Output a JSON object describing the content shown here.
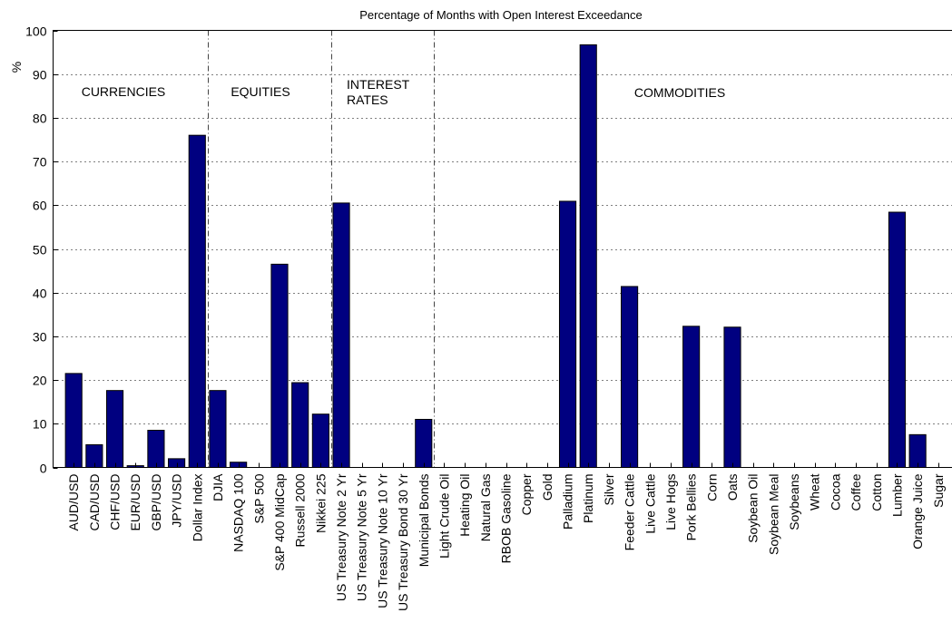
{
  "chart_data": {
    "type": "bar",
    "title": "Percentage of Months with Open Interest Exceedance",
    "xlabel": "",
    "ylabel": "%",
    "ylim": [
      0,
      100
    ],
    "yticks": [
      0,
      10,
      20,
      30,
      40,
      50,
      60,
      70,
      80,
      90,
      100
    ],
    "grid": true,
    "bar_color": "#000080",
    "categories": [
      "AUD/USD",
      "CAD/USD",
      "CHF/USD",
      "EUR/USD",
      "GBP/USD",
      "JPY/USD",
      "Dollar Index",
      "DJIA",
      "NASDAQ 100",
      "S&P 500",
      "S&P 400 MidCap",
      "Russell 2000",
      "Nikkei 225",
      "US Treasury Note 2 Yr",
      "US Treasury Note 5 Yr",
      "US Treasury Note 10 Yr",
      "US Treasury Bond 30 Yr",
      "Municipal Bonds",
      "Light Crude Oil",
      "Heating Oil",
      "Natural Gas",
      "RBOB Gasoline",
      "Copper",
      "Gold",
      "Palladium",
      "Platinum",
      "Silver",
      "Feeder Cattle",
      "Live Cattle",
      "Live Hogs",
      "Pork Bellies",
      "Corn",
      "Oats",
      "Soybean Oil",
      "Soybean Meal",
      "Soybeans",
      "Wheat",
      "Cocoa",
      "Coffee",
      "Cotton",
      "Lumber",
      "Orange Juice",
      "Sugar"
    ],
    "values": [
      21.5,
      5.2,
      17.6,
      0.4,
      8.5,
      2.0,
      76.0,
      17.6,
      1.2,
      0,
      46.5,
      19.4,
      12.2,
      60.5,
      0,
      0,
      0,
      11.0,
      0,
      0,
      0,
      0,
      0,
      0,
      60.9,
      96.7,
      0,
      41.4,
      0,
      0,
      32.3,
      0,
      32.1,
      0,
      0,
      0,
      0,
      0,
      0,
      0,
      58.4,
      7.5,
      0
    ],
    "sector_labels": [
      {
        "lines": [
          "CURRENCIES"
        ]
      },
      {
        "lines": [
          "EQUITIES"
        ]
      },
      {
        "lines": [
          "INTEREST",
          "RATES"
        ]
      },
      {
        "lines": [
          "COMMODITIES"
        ]
      }
    ],
    "sector_dividers_after_index": [
      6,
      12,
      17
    ]
  }
}
